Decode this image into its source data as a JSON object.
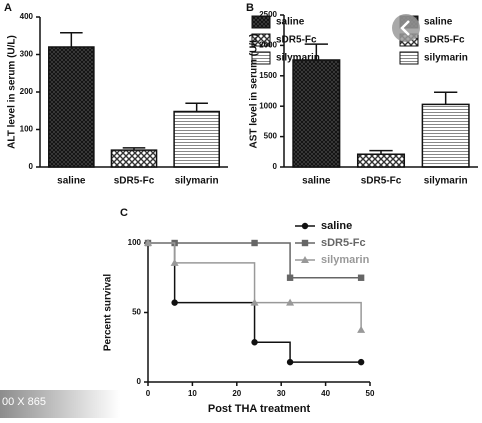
{
  "chart_data": [
    {
      "type": "bar",
      "panel": "A",
      "ylabel": "ALT level in serum (U/L)",
      "categories": [
        "saline",
        "sDR5-Fc",
        "silymarin"
      ],
      "values": [
        320,
        45,
        148
      ],
      "errors": [
        38,
        6,
        22
      ],
      "patterns": [
        "crosshatch",
        "checker",
        "hlines"
      ],
      "ylim": [
        0,
        400
      ],
      "yticks": [
        0,
        100,
        200,
        300,
        400
      ],
      "legend": "top-right"
    },
    {
      "type": "bar",
      "panel": "B",
      "ylabel": "AST level in serum (U/L)",
      "categories": [
        "saline",
        "sDR5-Fc",
        "silymarin"
      ],
      "values": [
        1760,
        210,
        1030
      ],
      "errors": [
        260,
        60,
        200
      ],
      "patterns": [
        "crosshatch",
        "checker",
        "hlines"
      ],
      "ylim": [
        0,
        2500
      ],
      "yticks": [
        0,
        500,
        1000,
        1500,
        2000,
        2500
      ],
      "legend": "top-right"
    },
    {
      "type": "line",
      "panel": "C",
      "xlabel": "Post THA treatment",
      "ylabel": "Percent survival",
      "step": true,
      "x": [
        0,
        6,
        24,
        32,
        48
      ],
      "series": [
        {
          "name": "saline",
          "color": "#111111",
          "marker": "circle",
          "values": [
            100,
            57.1,
            28.6,
            14.3,
            14.3
          ]
        },
        {
          "name": "sDR5-Fc",
          "color": "#666666",
          "marker": "square",
          "values": [
            100,
            100,
            100,
            75,
            75
          ]
        },
        {
          "name": "silymarin",
          "color": "#999999",
          "marker": "triangle",
          "values": [
            100,
            85.7,
            57.1,
            57.1,
            37.5
          ]
        }
      ],
      "xlim": [
        0,
        50
      ],
      "xticks": [
        0,
        10,
        20,
        30,
        40,
        50
      ],
      "ylim": [
        0,
        100
      ],
      "yticks": [
        0,
        50,
        100
      ],
      "legend": "top-right"
    }
  ],
  "overlay_text": "00 X 865"
}
